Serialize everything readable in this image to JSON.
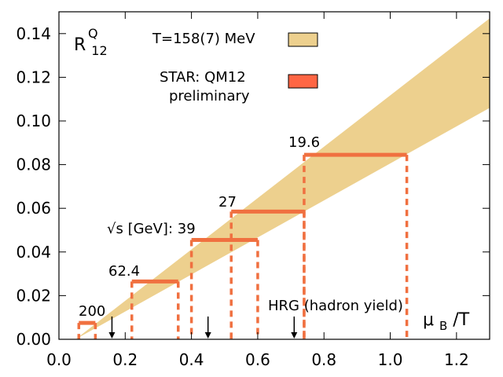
{
  "chart_data": {
    "type": "line",
    "title": "",
    "xlabel": "μB/T",
    "ylabel": "R12Q",
    "xlim": [
      0.0,
      1.3
    ],
    "ylim": [
      0.0,
      0.15
    ],
    "x_ticks": [
      0.0,
      0.2,
      0.4,
      0.6,
      0.8,
      1.0,
      1.2
    ],
    "x_tick_labels": [
      "0.0",
      "0.2",
      "0.4",
      "0.6",
      "0.8",
      "1.0",
      "1.2"
    ],
    "y_ticks": [
      0.0,
      0.02,
      0.04,
      0.06,
      0.08,
      0.1,
      0.12,
      0.14
    ],
    "y_tick_labels": [
      "0.00",
      "0.02",
      "0.04",
      "0.06",
      "0.08",
      "0.10",
      "0.12",
      "0.14"
    ],
    "ylabel_main": "R",
    "ylabel_sub": "12",
    "ylabel_sup": "Q",
    "xlabel_main": "μ",
    "xlabel_sub": "B",
    "xlabel_tail": "/T",
    "band": {
      "name": "T=158(7) MeV",
      "color": "#edd08e",
      "origin": [
        0.05,
        0.0
      ],
      "end_upper": [
        1.3,
        0.147
      ],
      "end_lower": [
        1.3,
        0.106
      ]
    },
    "star_points": [
      {
        "sqrt_s": "200",
        "y": 0.0075,
        "x_low": 0.06,
        "x_high": 0.11
      },
      {
        "sqrt_s": "62.4",
        "y": 0.0265,
        "x_low": 0.22,
        "x_high": 0.36
      },
      {
        "sqrt_s": "39",
        "y": 0.0455,
        "x_low": 0.4,
        "x_high": 0.6
      },
      {
        "sqrt_s": "27",
        "y": 0.0585,
        "x_low": 0.52,
        "x_high": 0.74
      },
      {
        "sqrt_s": "19.6",
        "y": 0.0845,
        "x_low": 0.74,
        "x_high": 1.05
      }
    ],
    "star_color": "#f07040",
    "energy_prefix": "√s [GeV]: ",
    "hrg_arrows_x": [
      0.16,
      0.45,
      0.71
    ],
    "hrg_label": "HRG (hadron yield)",
    "legend": [
      {
        "label": "T=158(7) MeV",
        "color": "#edd08e"
      },
      {
        "label": "STAR: QM12",
        "label2": "preliminary",
        "color": "#ff6644"
      }
    ]
  }
}
